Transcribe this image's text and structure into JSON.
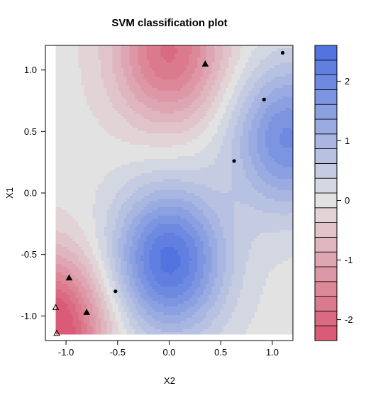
{
  "chart_data": {
    "type": "contour",
    "title": "SVM classification plot",
    "xlabel": "X2",
    "ylabel": "X1",
    "xlim": [
      -1.2,
      1.2
    ],
    "ylim": [
      -1.2,
      1.2
    ],
    "x_ticks": [
      -1.0,
      -0.5,
      0.0,
      0.5,
      1.0
    ],
    "x_tick_labels": [
      "-1.0",
      "-0.5",
      "0.0",
      "0.5",
      "1.0"
    ],
    "y_ticks": [
      -1.0,
      -0.5,
      0.0,
      0.5,
      1.0
    ],
    "y_tick_labels": [
      "-1.0",
      "-0.5",
      "0.0",
      "0.5",
      "1.0"
    ],
    "colorbar": {
      "min": -2.35,
      "max": 2.6,
      "levels": 20,
      "ticks": [
        -2,
        -1,
        0,
        1,
        2
      ],
      "tick_labels": [
        "-2",
        "-1",
        "0",
        "1",
        "2"
      ],
      "low_color": "#d9546f",
      "mid_color": "#e2e2e2",
      "high_color": "#4a6ee0"
    },
    "decision_field": {
      "x_range": [
        -1.1,
        1.2
      ],
      "y_range": [
        -1.15,
        1.2
      ],
      "peaks": [
        {
          "name": "high-center",
          "x": 0.0,
          "y": -0.55,
          "amplitude": 2.45
        },
        {
          "name": "high-right",
          "x": 1.15,
          "y": 0.45,
          "amplitude": 1.9
        },
        {
          "name": "low-top",
          "x": 0.0,
          "y": 1.15,
          "amplitude": -1.9
        },
        {
          "name": "low-bottom-left",
          "x": -1.15,
          "y": -1.1,
          "amplitude": -2.6
        }
      ]
    },
    "points": [
      {
        "x": 0.35,
        "y": 1.05,
        "marker": "filled-triangle"
      },
      {
        "x": 1.1,
        "y": 1.14,
        "marker": "filled-circle"
      },
      {
        "x": 0.92,
        "y": 0.76,
        "marker": "filled-circle"
      },
      {
        "x": 0.63,
        "y": 0.26,
        "marker": "filled-circle"
      },
      {
        "x": -0.52,
        "y": -0.8,
        "marker": "filled-circle"
      },
      {
        "x": -0.97,
        "y": -0.69,
        "marker": "filled-triangle"
      },
      {
        "x": -0.8,
        "y": -0.97,
        "marker": "filled-triangle"
      },
      {
        "x": -1.1,
        "y": -0.93,
        "marker": "open-triangle"
      },
      {
        "x": -1.09,
        "y": -1.14,
        "marker": "open-triangle"
      }
    ]
  }
}
